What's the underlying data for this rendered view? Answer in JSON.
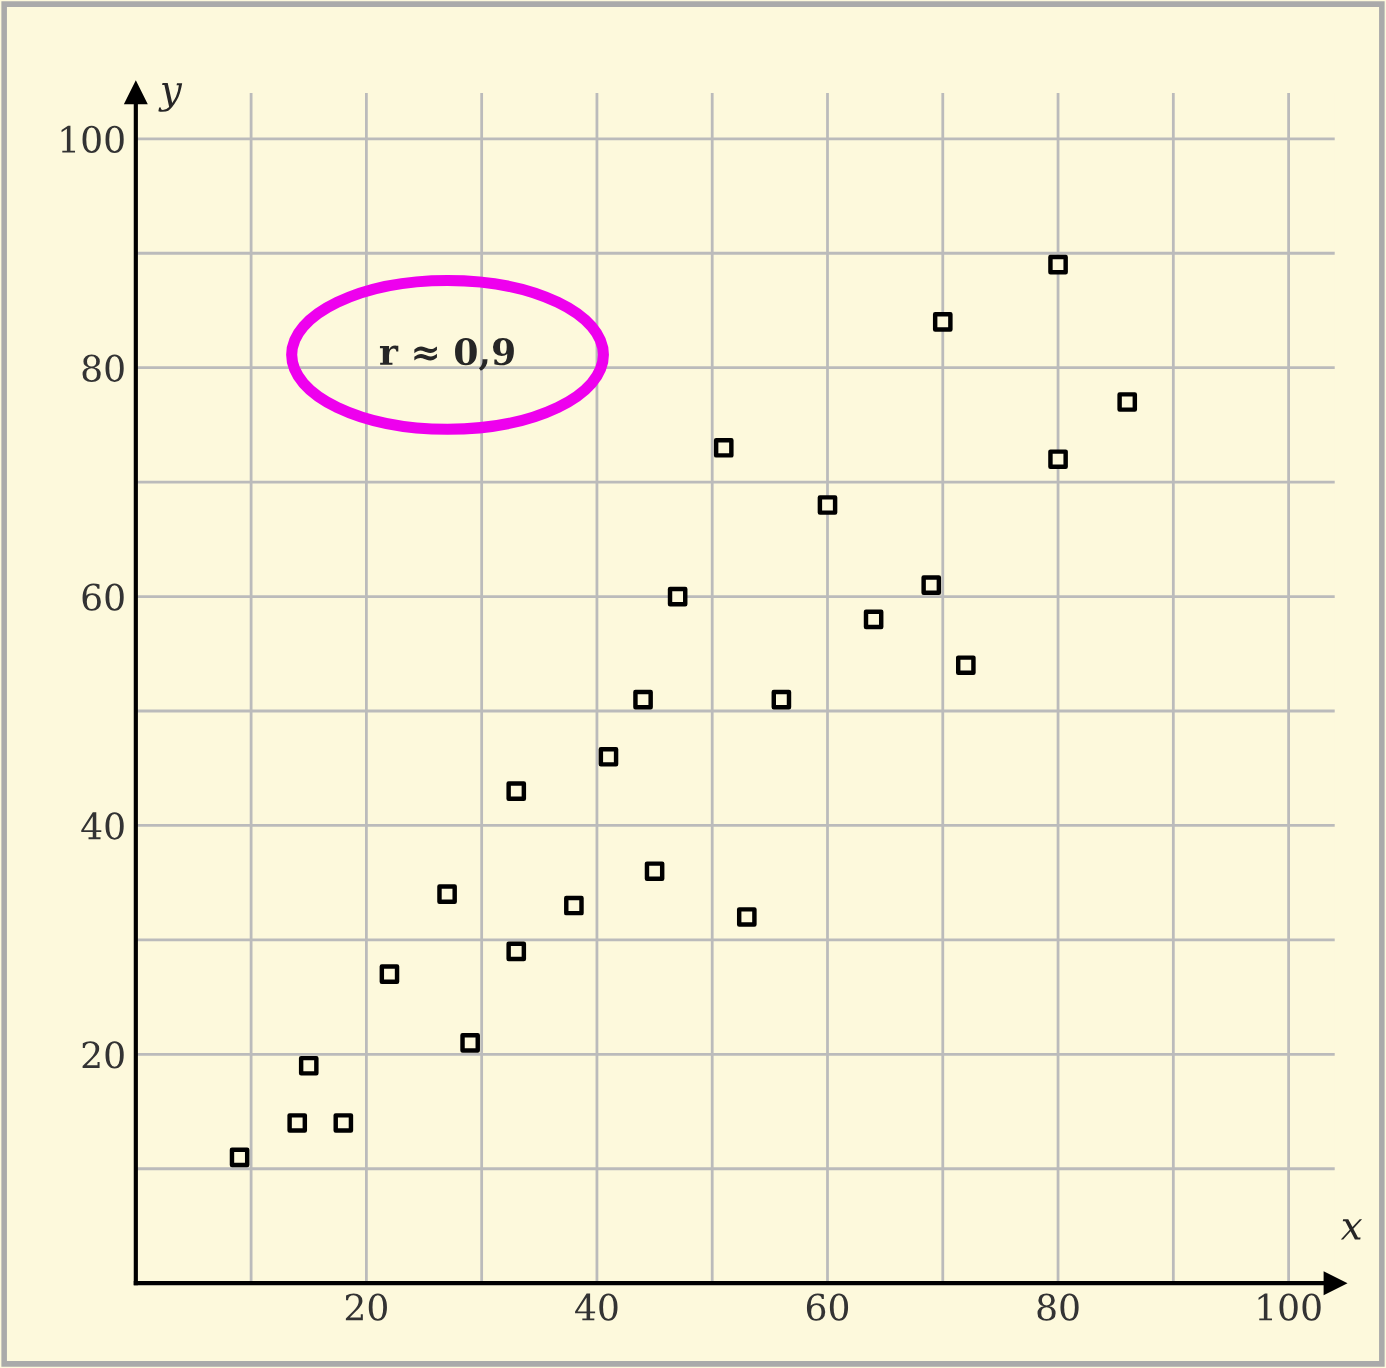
{
  "chart_data": {
    "type": "scatter",
    "xlabel": "x",
    "ylabel": "y",
    "annotations": [
      "r ≈ 0,9"
    ],
    "x": [
      9,
      14,
      15,
      18,
      22,
      27,
      29,
      33,
      33,
      38,
      41,
      44,
      45,
      47,
      51,
      53,
      56,
      60,
      64,
      69,
      70,
      72,
      80,
      80,
      86
    ],
    "series": [
      {
        "color": "#000000",
        "values": [
          11,
          14,
          19,
          14,
          27,
          34,
          21,
          43,
          29,
          33,
          46,
          51,
          36,
          60,
          73,
          32,
          51,
          68,
          58,
          61,
          84,
          54,
          89,
          72,
          77
        ]
      }
    ],
    "xlim": [
      0,
      104
    ],
    "ylim": [
      0,
      104
    ],
    "xticks": [
      {
        "value": 10,
        "label": null
      },
      20,
      {
        "value": 30,
        "label": null
      },
      40,
      {
        "value": 50,
        "label": null
      },
      60,
      {
        "value": 70,
        "label": null
      },
      80,
      {
        "value": 90,
        "label": null
      },
      100
    ],
    "yticks": [
      {
        "value": 10,
        "label": null
      },
      20,
      {
        "value": 30,
        "label": null
      },
      40,
      {
        "value": 50,
        "label": null
      },
      60,
      {
        "value": 70,
        "label": null
      },
      80,
      {
        "value": 90,
        "label": null
      },
      100
    ],
    "grid": true,
    "marker": "square"
  }
}
